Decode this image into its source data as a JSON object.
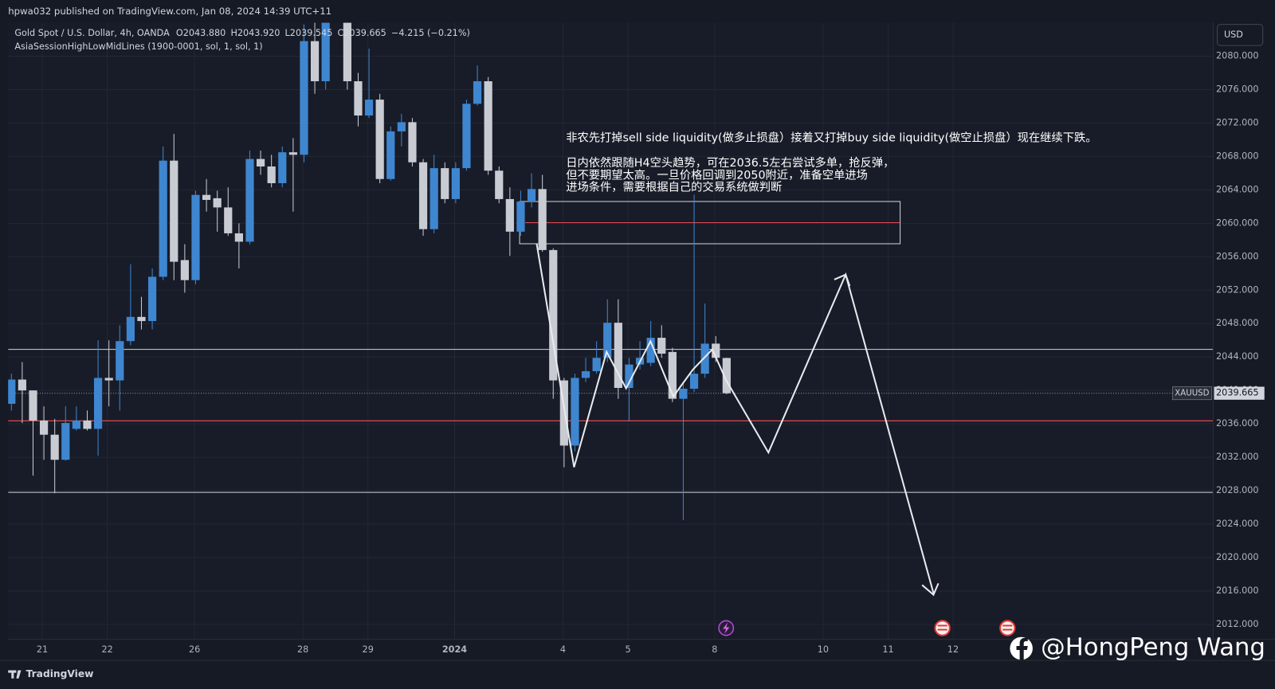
{
  "header": {
    "published": "hpwa032 published on TradingView.com, Jan 08, 2024 14:39 UTC+11",
    "symbol": "Gold Spot / U.S. Dollar, 4h, OANDA",
    "ohlc": [
      "O2043.880",
      "H2043.920",
      "L2039.545",
      "C2039.665"
    ],
    "change": "−4.215 (−0.21%)",
    "indicator": "AsiaSessionHighLowMidLines (1900-0001, sol, 1, sol, 1)"
  },
  "chart_data": {
    "type": "candlestick",
    "x": [
      0,
      1,
      2,
      3,
      4,
      5,
      6,
      7,
      8,
      9,
      10,
      11,
      12,
      13,
      14,
      15,
      16,
      17,
      18,
      19,
      20,
      21,
      22,
      23,
      24,
      25,
      26,
      27,
      28,
      29,
      31,
      32,
      33,
      34,
      35,
      36,
      37,
      38,
      39,
      40,
      41,
      42,
      43,
      44,
      45,
      46,
      47,
      48,
      49,
      50,
      51,
      52,
      53,
      54,
      55,
      56,
      57,
      58,
      59,
      60,
      61,
      62,
      63,
      64,
      65,
      66
    ],
    "open": [
      2038.4,
      2041.3,
      2040.0,
      2036.4,
      2034.7,
      2031.7,
      2035.4,
      2036.4,
      2035.4,
      2041.5,
      2041.2,
      2045.9,
      2048.8,
      2048.3,
      2053.6,
      2067.5,
      2055.6,
      2053.2,
      2063.4,
      2063.0,
      2061.9,
      2058.8,
      2057.8,
      2067.7,
      2066.8,
      2064.8,
      2068.5,
      2068.2,
      2081.8,
      2077.0,
      2084.0,
      2077.0,
      2072.9,
      2074.8,
      2065.3,
      2071.0,
      2072.1,
      2067.3,
      2059.3,
      2066.6,
      2062.9,
      2066.6,
      2074.3,
      2077.0,
      2066.3,
      2062.9,
      2059.0,
      2062.6,
      2064.1,
      2056.8,
      2041.2,
      2033.4,
      2041.5,
      2042.3,
      2043.9,
      2048.1,
      2040.3,
      2043.1,
      2043.3,
      2046.3,
      2044.6,
      2039.0,
      2040.2,
      2042.0,
      2045.6,
      2043.88
    ],
    "high": [
      2042.0,
      2043.4,
      2040.0,
      2038.1,
      2036.6,
      2038.1,
      2038.1,
      2037.6,
      2046.0,
      2046.0,
      2047.8,
      2055.1,
      2051.2,
      2054.6,
      2069.2,
      2070.7,
      2057.5,
      2063.9,
      2065.3,
      2063.9,
      2064.3,
      2060.0,
      2068.7,
      2068.7,
      2068.2,
      2069.2,
      2070.2,
      2083.8,
      2084.3,
      2085.0,
      2085.0,
      2078.0,
      2080.9,
      2075.5,
      2071.6,
      2073.1,
      2072.6,
      2067.7,
      2068.2,
      2067.3,
      2067.3,
      2074.8,
      2078.9,
      2077.5,
      2066.8,
      2064.3,
      2063.9,
      2066.0,
      2065.8,
      2057.0,
      2041.5,
      2042.0,
      2043.9,
      2045.9,
      2050.9,
      2050.9,
      2043.9,
      2045.9,
      2048.3,
      2047.8,
      2045.1,
      2041.0,
      2063.4,
      2050.4,
      2046.5,
      2043.92
    ],
    "low": [
      2037.6,
      2036.1,
      2029.8,
      2031.7,
      2027.7,
      2031.6,
      2035.2,
      2035.2,
      2032.2,
      2038.1,
      2037.6,
      2045.4,
      2047.3,
      2047.3,
      2053.2,
      2053.2,
      2051.7,
      2052.7,
      2061.4,
      2059.0,
      2058.5,
      2054.6,
      2057.5,
      2065.8,
      2064.3,
      2064.3,
      2061.4,
      2067.3,
      2075.5,
      2076.0,
      2076.0,
      2071.6,
      2072.6,
      2064.8,
      2065.1,
      2069.2,
      2066.8,
      2058.5,
      2058.8,
      2062.4,
      2062.4,
      2066.3,
      2074.1,
      2065.8,
      2062.4,
      2056.1,
      2058.5,
      2061.9,
      2056.6,
      2039.0,
      2030.8,
      2032.7,
      2041.0,
      2042.0,
      2043.4,
      2039.0,
      2036.3,
      2042.5,
      2042.9,
      2043.9,
      2038.6,
      2024.5,
      2039.8,
      2041.5,
      2043.4,
      2039.545
    ],
    "close": [
      2041.3,
      2040.0,
      2036.4,
      2034.7,
      2031.7,
      2036.1,
      2036.4,
      2035.4,
      2041.5,
      2041.2,
      2045.9,
      2048.8,
      2048.3,
      2053.6,
      2067.5,
      2055.4,
      2053.2,
      2063.4,
      2062.8,
      2061.9,
      2058.8,
      2057.8,
      2067.7,
      2066.8,
      2064.8,
      2068.5,
      2068.2,
      2081.8,
      2077.0,
      2084.0,
      2077.0,
      2072.9,
      2074.8,
      2065.3,
      2071.0,
      2072.1,
      2067.3,
      2059.3,
      2066.6,
      2062.9,
      2066.6,
      2074.3,
      2077.0,
      2066.3,
      2062.9,
      2059.0,
      2062.6,
      2064.1,
      2056.8,
      2041.2,
      2033.4,
      2041.5,
      2042.3,
      2043.9,
      2048.1,
      2040.3,
      2043.1,
      2043.9,
      2046.3,
      2044.4,
      2039.0,
      2040.2,
      2042.0,
      2045.6,
      2043.9,
      2039.665
    ],
    "up_color": "#3f86d0",
    "down_color": "#c8cbd2",
    "xlim": [
      -0.3,
      110.9
    ],
    "xticks": [
      {
        "value": 2.85,
        "label": "21"
      },
      {
        "value": 8.85,
        "label": "22"
      },
      {
        "value": 16.9,
        "label": "26"
      },
      {
        "value": 26.9,
        "label": "28"
      },
      {
        "value": 32.9,
        "label": "29"
      },
      {
        "value": 40.9,
        "label": "2024"
      },
      {
        "value": 50.9,
        "label": "4"
      },
      {
        "value": 56.9,
        "label": "5"
      },
      {
        "value": 64.9,
        "label": "8"
      },
      {
        "value": 74.9,
        "label": "10"
      },
      {
        "value": 80.9,
        "label": "11"
      },
      {
        "value": 86.9,
        "label": "12"
      }
    ],
    "ylim": [
      2010.2,
      2084
    ],
    "yticks": [
      {
        "value": 2012,
        "label": "2012.000"
      },
      {
        "value": 2016,
        "label": "2016.000"
      },
      {
        "value": 2020,
        "label": "2020.000"
      },
      {
        "value": 2024,
        "label": "2024.000"
      },
      {
        "value": 2028,
        "label": "2028.000"
      },
      {
        "value": 2032,
        "label": "2032.000"
      },
      {
        "value": 2036,
        "label": "2036.000"
      },
      {
        "value": 2040,
        "label": "2040.000"
      },
      {
        "value": 2044,
        "label": "2044.000"
      },
      {
        "value": 2048,
        "label": "2048.000"
      },
      {
        "value": 2052,
        "label": "2052.000"
      },
      {
        "value": 2056,
        "label": "2056.000"
      },
      {
        "value": 2060,
        "label": "2060.000"
      },
      {
        "value": 2064,
        "label": "2064.000"
      },
      {
        "value": 2068,
        "label": "2068.000"
      },
      {
        "value": 2072,
        "label": "2072.000"
      },
      {
        "value": 2076,
        "label": "2076.000"
      },
      {
        "value": 2080,
        "label": "2080.000"
      }
    ],
    "grid": true,
    "currency": "USD",
    "symbol_tag": "XAUUSD",
    "last_price": 2039.665,
    "annotations": [
      "非农先打掉sell side liquidity(做多止损盘）接着又打掉buy side liquidity(做空止损盘）现在继续下跌。",
      "日内依然跟随H4空头趋势，可在2036.5左右尝试多单，抢反弹，",
      "但不要期望太高。一旦价格回调到2050附近，准备空单进场",
      "进场条件，需要根据自己的交易系统做判断"
    ]
  },
  "watermark": "@HongPeng Wang",
  "footer": "TradingView"
}
